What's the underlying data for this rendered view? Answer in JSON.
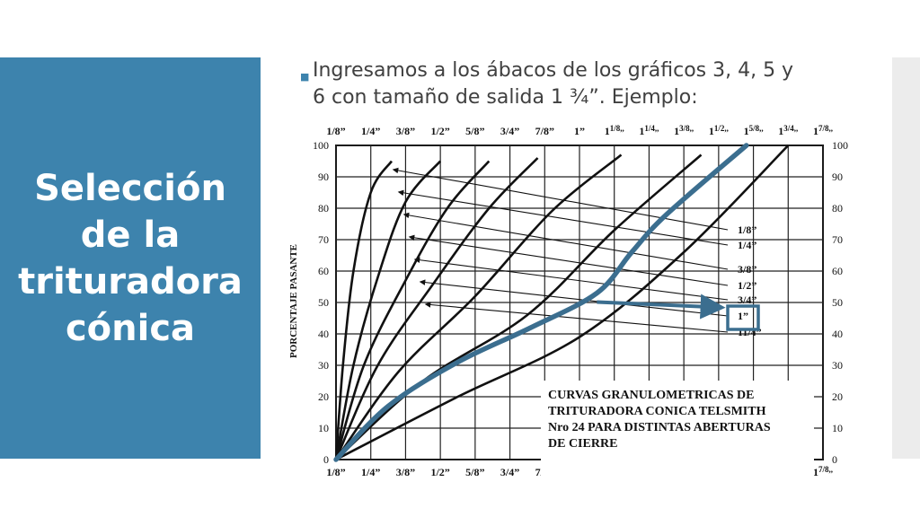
{
  "slide": {
    "title_lines": [
      "Selección",
      "de la",
      "trituradora",
      "cónica"
    ],
    "bullet_lines": [
      "Ingresamos a los ábacos de los gráficos 3, 4, 5 y",
      "6 con tamaño de salida 1 ¾”. Ejemplo:"
    ]
  },
  "colors": {
    "panel": "#3d83ad",
    "highlight": "#3b6e8f"
  },
  "chart_data": {
    "type": "line",
    "ylabel": "PORCENTAJE PASANTE",
    "ylim": [
      0,
      100
    ],
    "yticks_left": [
      "0",
      "10",
      "20",
      "30",
      "40",
      "50",
      "60",
      "70",
      "80",
      "90",
      "100"
    ],
    "yticks_right": [
      "0",
      "10",
      "20",
      "30",
      "40",
      "50",
      "60",
      "70",
      "80",
      "90",
      "100"
    ],
    "xticks": [
      {
        "whole": "",
        "frac": "1/8”"
      },
      {
        "whole": "",
        "frac": "1/4”"
      },
      {
        "whole": "",
        "frac": "3/8”"
      },
      {
        "whole": "",
        "frac": "1/2”"
      },
      {
        "whole": "",
        "frac": "5/8”"
      },
      {
        "whole": "",
        "frac": "3/4”"
      },
      {
        "whole": "",
        "frac": "7/8”"
      },
      {
        "whole": "",
        "frac": "1”"
      },
      {
        "whole": "1",
        "frac": "1/8,,"
      },
      {
        "whole": "1",
        "frac": "1/4,,"
      },
      {
        "whole": "1",
        "frac": "3/8,,"
      },
      {
        "whole": "1",
        "frac": "1/2,,"
      },
      {
        "whole": "1",
        "frac": "5/8,,"
      },
      {
        "whole": "1",
        "frac": "3/4,,"
      },
      {
        "whole": "1",
        "frac": "7/8,,"
      }
    ],
    "xlim": [
      0,
      14
    ],
    "legend_labels": [
      "1/8”",
      "1/4”",
      "3/8”",
      "1/2”",
      "3/4”",
      "1”",
      "11/4”"
    ],
    "series": [
      {
        "label": "1/8”",
        "x": [
          0,
          0.2,
          0.5,
          1.0,
          1.6
        ],
        "y": [
          0,
          30,
          60,
          85,
          95
        ]
      },
      {
        "label": "1/4”",
        "x": [
          0,
          0.5,
          1.2,
          2.0,
          3.0
        ],
        "y": [
          0,
          30,
          58,
          82,
          95
        ]
      },
      {
        "label": "3/8”",
        "x": [
          0,
          0.8,
          2.0,
          3.2,
          4.4
        ],
        "y": [
          0,
          30,
          57,
          80,
          95
        ]
      },
      {
        "label": "1/2”",
        "x": [
          0,
          1.2,
          2.8,
          4.4,
          5.8
        ],
        "y": [
          0,
          30,
          56,
          80,
          96
        ]
      },
      {
        "label": "3/4”",
        "x": [
          0,
          1.8,
          4.0,
          6.2,
          8.2
        ],
        "y": [
          0,
          28,
          52,
          79,
          97
        ]
      },
      {
        "label": "1”",
        "x": [
          0,
          2.5,
          5.5,
          8.0,
          10.5
        ],
        "y": [
          0,
          25,
          46,
          73,
          97
        ]
      },
      {
        "label": "11/4”",
        "x": [
          0,
          3.5,
          7.0,
          10.0,
          13.0
        ],
        "y": [
          0,
          20,
          39,
          66,
          100
        ]
      }
    ],
    "highlight": {
      "label": "1 ¾”",
      "x": [
        0,
        1.5,
        3.5,
        5.6,
        7.5,
        8.5,
        9.5,
        11.8
      ],
      "y": [
        0,
        17,
        31,
        42,
        53,
        66,
        78,
        100
      ],
      "arrow_to_label": "1”",
      "arrow_y": 49
    },
    "annotation": [
      "CURVAS GRANULOMETRICAS DE",
      "TRITURADORA CONICA TELSMITH",
      "Nro 24 PARA DISTINTAS ABERTURAS",
      "DE CIERRE"
    ]
  }
}
